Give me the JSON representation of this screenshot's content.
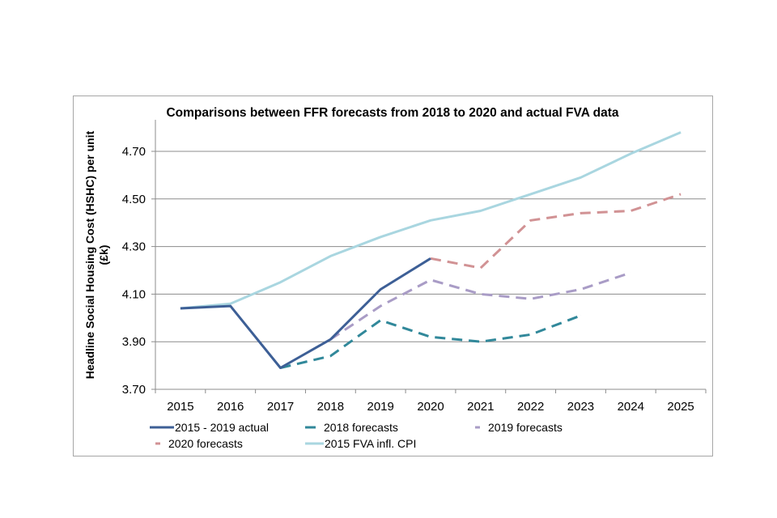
{
  "chart_data": {
    "type": "line",
    "title": "Comparisons between FFR forecasts from 2018 to 2020 and actual FVA data",
    "xlabel": "",
    "ylabel": "Headline Social Housing Cost (HSHC) per unit (£k)",
    "ylabel_lines": [
      "Headline Social Housing Cost (HSHC) per unit",
      "(£k)"
    ],
    "categories": [
      "2015",
      "2016",
      "2017",
      "2018",
      "2019",
      "2020",
      "2021",
      "2022",
      "2023",
      "2024",
      "2025"
    ],
    "ylim": [
      3.7,
      4.8
    ],
    "yticks": [
      "3.70",
      "3.90",
      "4.10",
      "4.30",
      "4.50",
      "4.70"
    ],
    "grid": true,
    "legend_position": "bottom",
    "series": [
      {
        "name": "2015 - 2019 actual",
        "color": "#3d5f96",
        "dash": false,
        "values": [
          4.04,
          4.05,
          3.79,
          3.91,
          4.12,
          4.25,
          null,
          null,
          null,
          null,
          null
        ]
      },
      {
        "name": "2018 forecasts",
        "color": "#31889a",
        "dash": true,
        "values": [
          null,
          null,
          3.79,
          3.84,
          3.99,
          3.92,
          3.9,
          3.93,
          4.01,
          null,
          null
        ]
      },
      {
        "name": "2019 forecasts",
        "color": "#a99cc6",
        "dash": true,
        "values": [
          null,
          null,
          null,
          3.91,
          4.05,
          4.16,
          4.1,
          4.08,
          4.12,
          4.19,
          null
        ]
      },
      {
        "name": "2020 forecasts",
        "color": "#d19294",
        "dash": true,
        "values": [
          null,
          null,
          null,
          null,
          null,
          4.25,
          4.21,
          4.41,
          4.44,
          4.45,
          4.52
        ]
      },
      {
        "name": "2015 FVA infl. CPI",
        "color": "#a9d6e0",
        "dash": false,
        "values": [
          4.04,
          4.06,
          4.15,
          4.26,
          4.34,
          4.41,
          4.45,
          4.52,
          4.59,
          4.69,
          4.78
        ]
      }
    ]
  }
}
